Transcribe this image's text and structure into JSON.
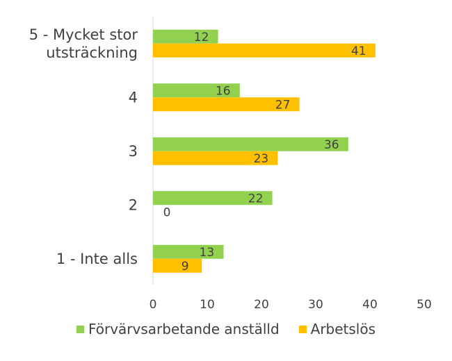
{
  "chart_data": {
    "type": "bar",
    "orientation": "horizontal",
    "categories": [
      "5 - Mycket stor utsträckning",
      "4",
      "3",
      "2",
      "1 - Inte alls"
    ],
    "category_lines": [
      [
        "5 - Mycket stor",
        "utsträckning"
      ],
      [
        "4"
      ],
      [
        "3"
      ],
      [
        "2"
      ],
      [
        "1 - Inte alls"
      ]
    ],
    "series": [
      {
        "name": "Förvärvsarbetande anställd",
        "color": "#92D050",
        "values": [
          12,
          16,
          36,
          22,
          13
        ]
      },
      {
        "name": "Arbetslös",
        "color": "#FFC000",
        "values": [
          41,
          27,
          23,
          0,
          9
        ]
      }
    ],
    "xlim": [
      0,
      50
    ],
    "xticks": [
      0,
      10,
      20,
      30,
      40,
      50
    ],
    "grid": false,
    "legend_position": "bottom",
    "data_labels": true
  }
}
